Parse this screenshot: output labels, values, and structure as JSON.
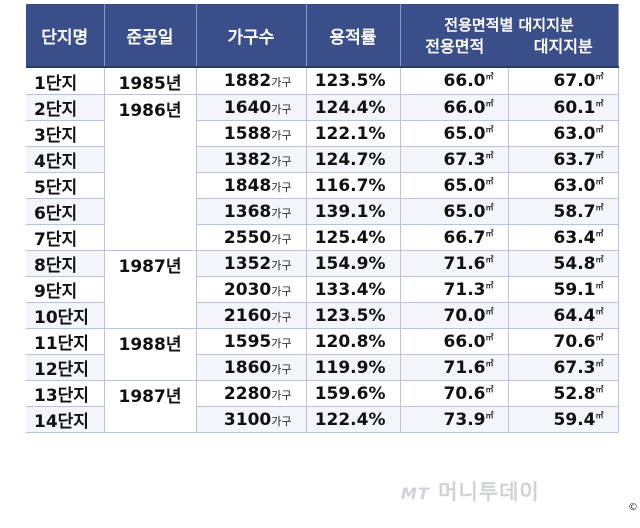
{
  "headers": {
    "complex": "단지명",
    "completion": "준공일",
    "households": "가구수",
    "far": "용적률",
    "group": "전용면적별 대지지분",
    "area": "전용면적",
    "land": "대지지분"
  },
  "units": {
    "households": "가구",
    "area": "㎡"
  },
  "years": [
    {
      "label": "1985년",
      "rows": 1
    },
    {
      "label": "1986년",
      "rows": 6
    },
    {
      "label": "1987년",
      "rows": 3
    },
    {
      "label": "1988년",
      "rows": 2
    },
    {
      "label": "1987년",
      "rows": 2
    }
  ],
  "rows": [
    {
      "name": "1단지",
      "households": "1882",
      "far": "123.5%",
      "area": "66.0",
      "land": "67.0"
    },
    {
      "name": "2단지",
      "households": "1640",
      "far": "124.4%",
      "area": "66.0",
      "land": "60.1"
    },
    {
      "name": "3단지",
      "households": "1588",
      "far": "122.1%",
      "area": "65.0",
      "land": "63.0"
    },
    {
      "name": "4단지",
      "households": "1382",
      "far": "124.7%",
      "area": "67.3",
      "land": "63.7"
    },
    {
      "name": "5단지",
      "households": "1848",
      "far": "116.7%",
      "area": "65.0",
      "land": "63.0"
    },
    {
      "name": "6단지",
      "households": "1368",
      "far": "139.1%",
      "area": "65.0",
      "land": "58.7"
    },
    {
      "name": "7단지",
      "households": "2550",
      "far": "125.4%",
      "area": "66.7",
      "land": "63.4"
    },
    {
      "name": "8단지",
      "households": "1352",
      "far": "154.9%",
      "area": "71.6",
      "land": "54.8"
    },
    {
      "name": "9단지",
      "households": "2030",
      "far": "133.4%",
      "area": "71.3",
      "land": "59.1"
    },
    {
      "name": "10단지",
      "households": "2160",
      "far": "123.5%",
      "area": "70.0",
      "land": "64.4"
    },
    {
      "name": "11단지",
      "households": "1595",
      "far": "120.8%",
      "area": "66.0",
      "land": "70.6"
    },
    {
      "name": "12단지",
      "households": "1860",
      "far": "119.9%",
      "area": "71.6",
      "land": "67.3"
    },
    {
      "name": "13단지",
      "households": "2280",
      "far": "159.6%",
      "area": "70.6",
      "land": "52.8"
    },
    {
      "name": "14단지",
      "households": "3100",
      "far": "122.4%",
      "area": "73.9",
      "land": "59.4"
    }
  ],
  "watermark": {
    "mark": "MT",
    "text": "머니투데이"
  },
  "copyright": "©"
}
